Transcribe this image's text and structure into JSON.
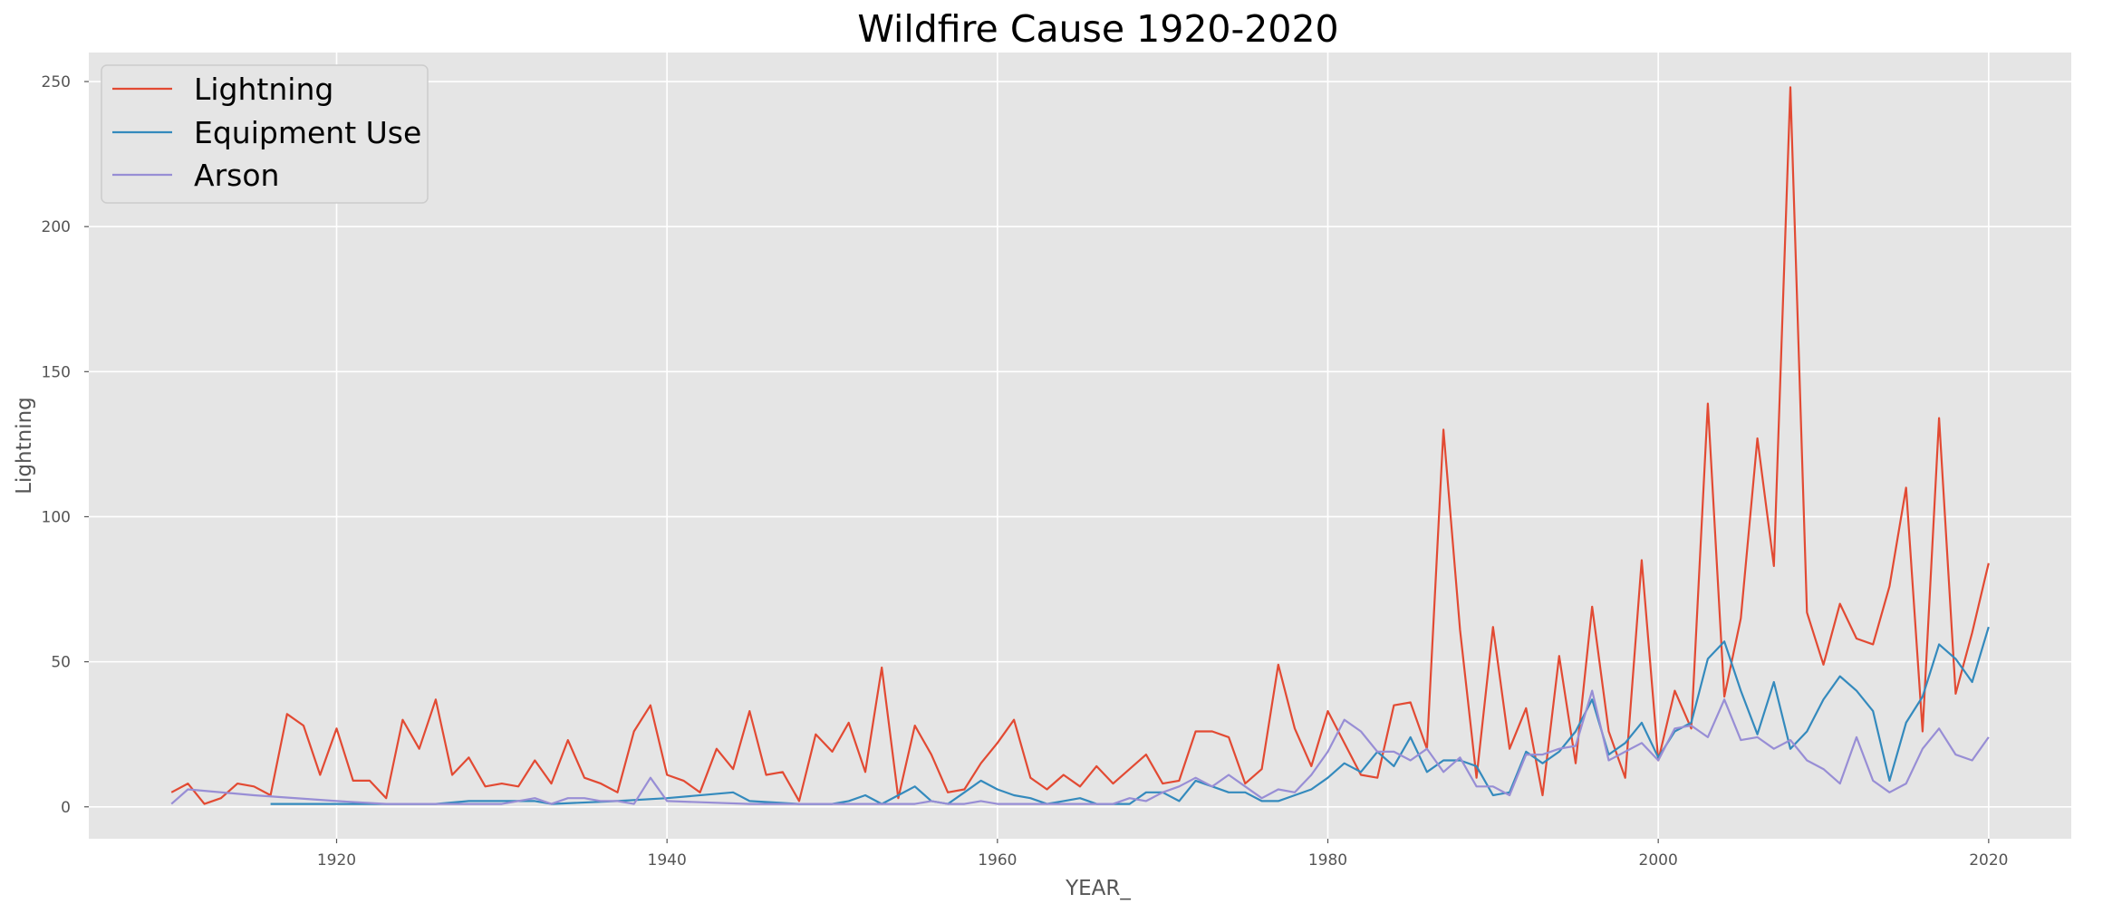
{
  "chart_data": {
    "type": "line",
    "title": "Wildfire Cause 1920-2020",
    "xlabel": "YEAR_",
    "ylabel": "Lightning",
    "xlim": [
      1905,
      2025
    ],
    "ylim": [
      -11,
      260
    ],
    "xticks": [
      1920,
      1940,
      1960,
      1980,
      2000,
      2020
    ],
    "yticks": [
      0,
      50,
      100,
      150,
      200,
      250
    ],
    "grid": true,
    "legend_position": "upper-left",
    "series": [
      {
        "name": "Lightning",
        "color": "#E24A33",
        "x": [
          1910,
          1911,
          1912,
          1913,
          1914,
          1915,
          1916,
          1917,
          1918,
          1919,
          1920,
          1921,
          1922,
          1923,
          1924,
          1925,
          1926,
          1927,
          1928,
          1929,
          1930,
          1931,
          1932,
          1933,
          1934,
          1935,
          1936,
          1937,
          1938,
          1939,
          1940,
          1941,
          1942,
          1943,
          1944,
          1945,
          1946,
          1947,
          1948,
          1949,
          1950,
          1951,
          1952,
          1953,
          1954,
          1955,
          1956,
          1957,
          1958,
          1959,
          1960,
          1961,
          1962,
          1963,
          1964,
          1965,
          1966,
          1967,
          1968,
          1969,
          1970,
          1971,
          1972,
          1973,
          1974,
          1975,
          1976,
          1977,
          1978,
          1979,
          1980,
          1981,
          1982,
          1983,
          1984,
          1985,
          1986,
          1987,
          1988,
          1989,
          1990,
          1991,
          1992,
          1993,
          1994,
          1995,
          1996,
          1997,
          1998,
          1999,
          2000,
          2001,
          2002,
          2003,
          2004,
          2005,
          2006,
          2007,
          2008,
          2009,
          2010,
          2011,
          2012,
          2013,
          2014,
          2015,
          2016,
          2017,
          2018,
          2019,
          2020
        ],
        "values": [
          5,
          8,
          1,
          3,
          8,
          7,
          4,
          32,
          28,
          11,
          27,
          9,
          9,
          3,
          30,
          20,
          37,
          11,
          17,
          7,
          8,
          7,
          16,
          8,
          23,
          10,
          8,
          5,
          26,
          35,
          11,
          9,
          5,
          20,
          13,
          33,
          11,
          12,
          2,
          25,
          19,
          29,
          12,
          48,
          3,
          28,
          18,
          5,
          6,
          15,
          22,
          30,
          10,
          6,
          11,
          7,
          14,
          8,
          13,
          18,
          8,
          9,
          26,
          26,
          24,
          8,
          13,
          49,
          27,
          14,
          33,
          22,
          11,
          10,
          35,
          36,
          20,
          130,
          61,
          10,
          62,
          20,
          34,
          4,
          52,
          15,
          69,
          26,
          10,
          85,
          16,
          40,
          27,
          139,
          38,
          65,
          127,
          83,
          248,
          67,
          49,
          70,
          58,
          56,
          76,
          110,
          26,
          134,
          39,
          60,
          84
        ]
      },
      {
        "name": "Equipment Use",
        "color": "#348ABD",
        "x": [
          1916,
          1920,
          1922,
          1926,
          1928,
          1932,
          1933,
          1937,
          1940,
          1944,
          1945,
          1948,
          1950,
          1951,
          1952,
          1953,
          1954,
          1955,
          1956,
          1957,
          1958,
          1959,
          1960,
          1961,
          1962,
          1963,
          1964,
          1965,
          1966,
          1967,
          1968,
          1969,
          1970,
          1971,
          1972,
          1973,
          1974,
          1975,
          1976,
          1977,
          1978,
          1979,
          1980,
          1981,
          1982,
          1983,
          1984,
          1985,
          1986,
          1987,
          1988,
          1989,
          1990,
          1991,
          1992,
          1993,
          1994,
          1995,
          1996,
          1997,
          1998,
          1999,
          2000,
          2001,
          2002,
          2003,
          2004,
          2005,
          2006,
          2007,
          2008,
          2009,
          2010,
          2011,
          2012,
          2013,
          2014,
          2015,
          2016,
          2017,
          2018,
          2019,
          2020
        ],
        "values": [
          1,
          1,
          1,
          1,
          2,
          2,
          1,
          2,
          3,
          5,
          2,
          1,
          1,
          2,
          4,
          1,
          4,
          7,
          2,
          1,
          5,
          9,
          6,
          4,
          3,
          1,
          2,
          3,
          1,
          1,
          1,
          5,
          5,
          2,
          9,
          7,
          5,
          5,
          2,
          2,
          4,
          6,
          10,
          15,
          12,
          19,
          14,
          24,
          12,
          16,
          16,
          14,
          4,
          5,
          19,
          15,
          19,
          26,
          37,
          18,
          22,
          29,
          17,
          26,
          29,
          51,
          57,
          40,
          25,
          43,
          20,
          26,
          37,
          45,
          40,
          33,
          9,
          29,
          38,
          56,
          51,
          43,
          62
        ]
      },
      {
        "name": "Arson",
        "color": "#988ED5",
        "x": [
          1910,
          1911,
          1915,
          1920,
          1923,
          1925,
          1930,
          1932,
          1933,
          1934,
          1935,
          1936,
          1937,
          1938,
          1939,
          1940,
          1945,
          1950,
          1955,
          1956,
          1957,
          1958,
          1959,
          1960,
          1965,
          1966,
          1967,
          1968,
          1969,
          1970,
          1971,
          1972,
          1973,
          1974,
          1975,
          1976,
          1977,
          1978,
          1979,
          1980,
          1981,
          1982,
          1983,
          1984,
          1985,
          1986,
          1987,
          1988,
          1989,
          1990,
          1991,
          1992,
          1993,
          1994,
          1995,
          1996,
          1997,
          1998,
          1999,
          2000,
          2001,
          2002,
          2003,
          2004,
          2005,
          2006,
          2007,
          2008,
          2009,
          2010,
          2011,
          2012,
          2013,
          2014,
          2015,
          2016,
          2017,
          2018,
          2019,
          2020
        ],
        "values": [
          1,
          6,
          4,
          2,
          1,
          1,
          1,
          3,
          1,
          3,
          3,
          2,
          2,
          1,
          10,
          2,
          1,
          1,
          1,
          2,
          1,
          1,
          2,
          1,
          1,
          1,
          1,
          3,
          2,
          5,
          7,
          10,
          7,
          11,
          7,
          3,
          6,
          5,
          11,
          19,
          30,
          26,
          19,
          19,
          16,
          20,
          12,
          17,
          7,
          7,
          4,
          18,
          18,
          20,
          21,
          40,
          16,
          19,
          22,
          16,
          27,
          28,
          24,
          37,
          23,
          24,
          20,
          23,
          16,
          13,
          8,
          24,
          9,
          5,
          8,
          20,
          27,
          18,
          16,
          24
        ]
      }
    ]
  }
}
